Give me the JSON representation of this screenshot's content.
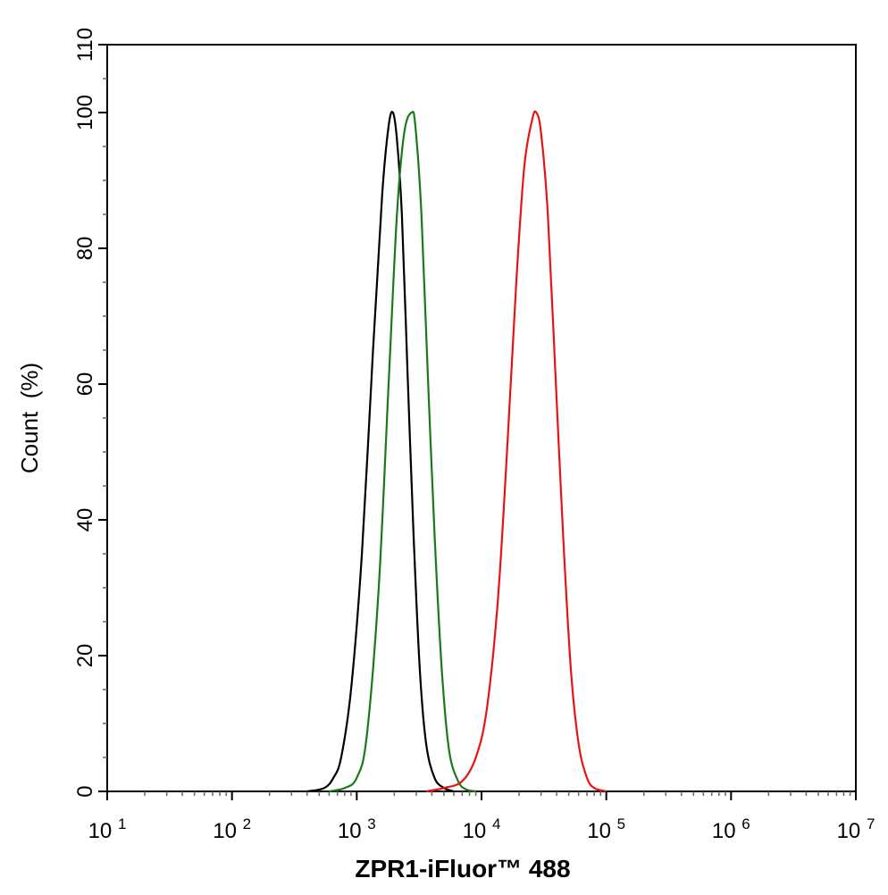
{
  "chart_data": {
    "type": "line",
    "xlabel": "ZPR1-iFluor™ 488",
    "ylabel": "Count  (%)",
    "x_scale": "log",
    "xlim": [
      10,
      10000000
    ],
    "ylim": [
      0,
      110
    ],
    "x_ticks": [
      {
        "base": "10",
        "exp": "1",
        "value": 10
      },
      {
        "base": "10",
        "exp": "2",
        "value": 100
      },
      {
        "base": "10",
        "exp": "3",
        "value": 1000
      },
      {
        "base": "10",
        "exp": "4",
        "value": 10000
      },
      {
        "base": "10",
        "exp": "5",
        "value": 100000
      },
      {
        "base": "10",
        "exp": "6",
        "value": 1000000
      },
      {
        "base": "10",
        "exp": "7",
        "value": 10000000
      }
    ],
    "y_ticks": [
      "0",
      "20",
      "40",
      "60",
      "80",
      "100",
      "110"
    ],
    "grid": false,
    "series": [
      {
        "color": "#000000",
        "points": [
          [
            400,
            0
          ],
          [
            550,
            0.5
          ],
          [
            650,
            2
          ],
          [
            750,
            5
          ],
          [
            900,
            15
          ],
          [
            1100,
            35
          ],
          [
            1350,
            65
          ],
          [
            1600,
            88
          ],
          [
            1800,
            98
          ],
          [
            1950,
            100
          ],
          [
            2100,
            96
          ],
          [
            2300,
            85
          ],
          [
            2550,
            62
          ],
          [
            2850,
            38
          ],
          [
            3200,
            18
          ],
          [
            3600,
            7
          ],
          [
            4200,
            2
          ],
          [
            5000,
            0.5
          ],
          [
            6000,
            0
          ]
        ]
      },
      {
        "color": "#1a7a1a",
        "points": [
          [
            600,
            0
          ],
          [
            800,
            0.5
          ],
          [
            1000,
            2
          ],
          [
            1200,
            8
          ],
          [
            1500,
            30
          ],
          [
            1800,
            60
          ],
          [
            2100,
            85
          ],
          [
            2400,
            97
          ],
          [
            2750,
            100
          ],
          [
            2950,
            98
          ],
          [
            3300,
            85
          ],
          [
            3700,
            62
          ],
          [
            4200,
            38
          ],
          [
            4800,
            18
          ],
          [
            5500,
            6
          ],
          [
            6500,
            1.5
          ],
          [
            7500,
            0.3
          ],
          [
            9000,
            0
          ]
        ]
      },
      {
        "color": "#e81414",
        "points": [
          [
            3600,
            0
          ],
          [
            5000,
            0.5
          ],
          [
            7000,
            1.5
          ],
          [
            9000,
            5
          ],
          [
            11000,
            12
          ],
          [
            13500,
            28
          ],
          [
            16000,
            50
          ],
          [
            19000,
            75
          ],
          [
            22000,
            92
          ],
          [
            25500,
            99
          ],
          [
            27500,
            100
          ],
          [
            30000,
            97
          ],
          [
            34000,
            85
          ],
          [
            39000,
            62
          ],
          [
            45000,
            38
          ],
          [
            52000,
            18
          ],
          [
            60000,
            7
          ],
          [
            70000,
            2
          ],
          [
            80000,
            0.5
          ],
          [
            100000,
            0
          ]
        ]
      }
    ]
  }
}
